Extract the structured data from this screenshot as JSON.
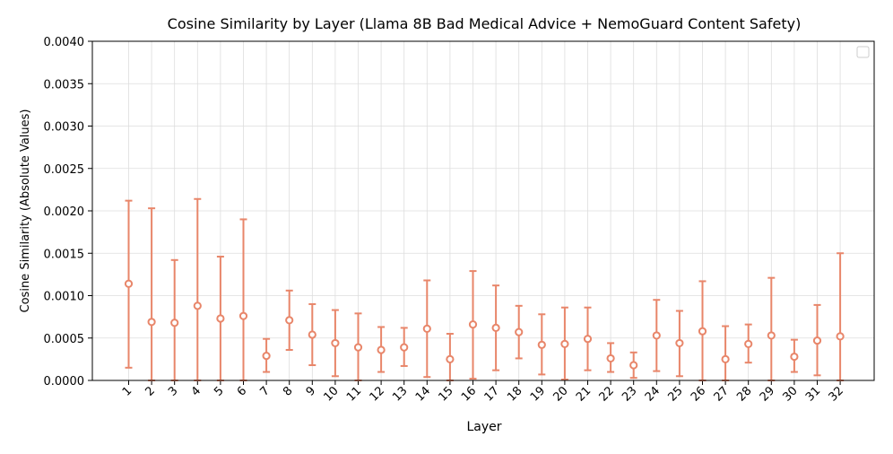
{
  "chart_data": {
    "type": "scatter",
    "title": "Cosine Similarity by Layer (Llama 8B Bad Medical Advice + NemoGuard Content Safety)",
    "xlabel": "Layer",
    "ylabel": "Cosine Similarity (Absolute Values)",
    "categories": [
      "1",
      "2",
      "3",
      "4",
      "5",
      "6",
      "7",
      "8",
      "9",
      "10",
      "11",
      "12",
      "13",
      "14",
      "15",
      "16",
      "17",
      "18",
      "19",
      "20",
      "21",
      "22",
      "23",
      "24",
      "25",
      "26",
      "27",
      "28",
      "29",
      "30",
      "31",
      "32"
    ],
    "ylim": [
      0,
      0.004
    ],
    "yticks": [
      "0.0000",
      "0.0005",
      "0.0010",
      "0.0015",
      "0.0020",
      "0.0025",
      "0.0030",
      "0.0035",
      "0.0040"
    ],
    "grid": true,
    "legend": "top-right (empty)",
    "color": "#E8866A",
    "series": [
      {
        "values": [
          0.00114,
          0.00069,
          0.00068,
          0.00088,
          0.00073,
          0.00076,
          0.00029,
          0.00071,
          0.00054,
          0.00044,
          0.00039,
          0.00036,
          0.00039,
          0.00061,
          0.00025,
          0.00066,
          0.00062,
          0.00057,
          0.00042,
          0.00043,
          0.00049,
          0.00026,
          0.00018,
          0.00053,
          0.00044,
          0.00058,
          0.00025,
          0.00043,
          0.00053,
          0.00028,
          0.00047,
          0.00052
        ],
        "err_low": [
          0.00015,
          0.0,
          0.0,
          0.0,
          0.0,
          0.0,
          0.0001,
          0.00036,
          0.00018,
          5e-05,
          0.0,
          0.0001,
          0.00017,
          4e-05,
          0.0,
          2e-05,
          0.00012,
          0.00026,
          7e-05,
          1e-05,
          0.00012,
          0.0001,
          3e-05,
          0.00011,
          5e-05,
          0.0,
          0.0,
          0.00021,
          0.0,
          0.0001,
          6e-05,
          0.0
        ],
        "err_high": [
          0.00212,
          0.00203,
          0.00142,
          0.00214,
          0.00146,
          0.0019,
          0.00049,
          0.00106,
          0.0009,
          0.00083,
          0.00079,
          0.00063,
          0.00062,
          0.00118,
          0.00055,
          0.00129,
          0.00112,
          0.00088,
          0.00078,
          0.00086,
          0.00086,
          0.00044,
          0.00033,
          0.00095,
          0.00082,
          0.00117,
          0.00064,
          0.00066,
          0.00121,
          0.00048,
          0.00089,
          0.0015
        ]
      }
    ]
  }
}
